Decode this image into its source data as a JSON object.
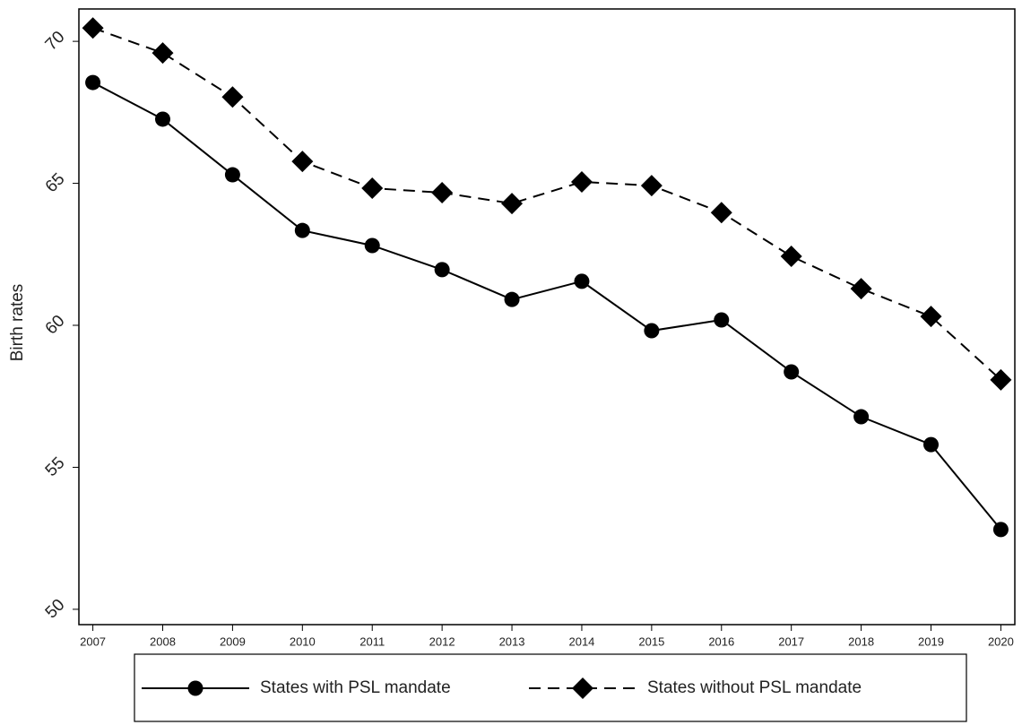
{
  "chart_data": {
    "type": "line",
    "y_label": "Birth rates",
    "x": [
      2007,
      2008,
      2009,
      2010,
      2011,
      2012,
      2013,
      2014,
      2015,
      2016,
      2017,
      2018,
      2019,
      2020
    ],
    "xlim": [
      2006.8,
      2020.2
    ],
    "xticks": [
      2007,
      2008,
      2009,
      2010,
      2011,
      2012,
      2013,
      2014,
      2015,
      2016,
      2017,
      2018,
      2019,
      2020
    ],
    "ylim": [
      49.46,
      71.14
    ],
    "yticks": [
      50,
      55,
      60,
      65,
      70
    ],
    "grid": false,
    "series": [
      {
        "name": "States with PSL mandate",
        "color": "#000000",
        "marker": "circle",
        "line_style": "solid",
        "values": [
          68.55,
          67.26,
          65.3,
          63.34,
          62.81,
          61.96,
          60.91,
          61.55,
          59.81,
          60.19,
          58.36,
          56.78,
          55.8,
          52.81
        ]
      },
      {
        "name": "States without PSL mandate",
        "color": "#000000",
        "marker": "diamond",
        "line_style": "dashed",
        "values": [
          70.47,
          69.59,
          68.04,
          65.77,
          64.83,
          64.67,
          64.29,
          65.05,
          64.92,
          63.97,
          62.43,
          61.29,
          60.31,
          58.08
        ]
      }
    ],
    "legend": "bottom"
  }
}
